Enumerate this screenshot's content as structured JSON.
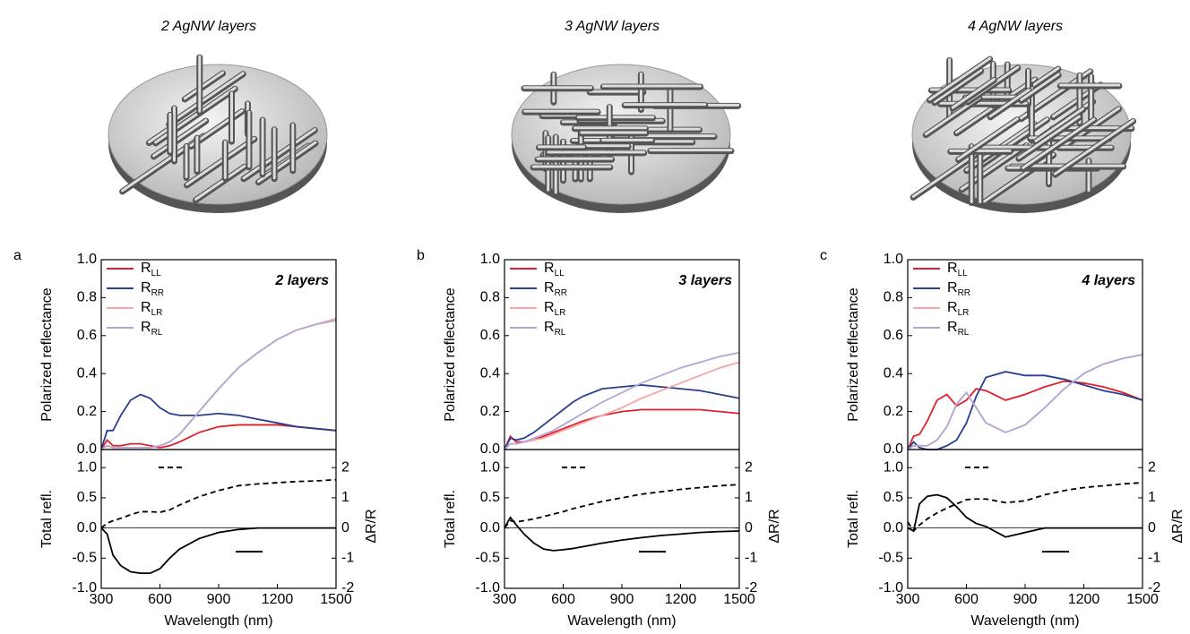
{
  "chart_data": [
    {
      "type": "line",
      "title": "2 AgNW layers",
      "panel_label": "a",
      "annotation": "2 layers",
      "ylabel": "Polarized reflectance",
      "x": [
        300,
        330,
        360,
        400,
        450,
        500,
        550,
        600,
        650,
        700,
        800,
        900,
        1000,
        1100,
        1200,
        1300,
        1400,
        1500
      ],
      "xlim": [
        300,
        1500
      ],
      "ylim": [
        0,
        1
      ],
      "yticks": [
        {
          "value": 0,
          "label": "0.0"
        },
        0.2,
        0.4,
        0.6,
        0.8,
        {
          "value": 1,
          "label": "1.0"
        }
      ],
      "series": [
        {
          "name": "RLL",
          "color": "#e0202a",
          "values": [
            0,
            0.05,
            0.02,
            0.02,
            0.03,
            0.03,
            0.02,
            0.01,
            0.02,
            0.04,
            0.09,
            0.12,
            0.13,
            0.13,
            0.13,
            0.12,
            0.11,
            0.1
          ]
        },
        {
          "name": "RRR",
          "color": "#2b3f8f",
          "values": [
            0,
            0.1,
            0.1,
            0.18,
            0.26,
            0.29,
            0.27,
            0.22,
            0.19,
            0.18,
            0.18,
            0.19,
            0.18,
            0.16,
            0.14,
            0.12,
            0.11,
            0.1
          ]
        },
        {
          "name": "RLR",
          "color": "#f4a6a6",
          "values": [
            0,
            0.02,
            0.01,
            0.01,
            0.01,
            0.01,
            0.01,
            0.02,
            0.04,
            0.08,
            0.2,
            0.32,
            0.43,
            0.51,
            0.58,
            0.63,
            0.66,
            0.69
          ]
        },
        {
          "name": "RRL",
          "color": "#b3a6d3",
          "values": [
            0,
            0.02,
            0.01,
            0.01,
            0.01,
            0.01,
            0.01,
            0.02,
            0.04,
            0.08,
            0.2,
            0.32,
            0.43,
            0.51,
            0.58,
            0.63,
            0.66,
            0.68
          ]
        }
      ]
    },
    {
      "type": "line",
      "xlabel": "Wavelength (nm)",
      "ylabel": "Total refl.",
      "y2label": "ΔR/R",
      "x": [
        300,
        330,
        360,
        400,
        450,
        500,
        550,
        600,
        650,
        700,
        800,
        900,
        1000,
        1100,
        1200,
        1300,
        1400,
        1500
      ],
      "xlim": [
        300,
        1500
      ],
      "xticks": [
        300,
        600,
        900,
        1200,
        1500
      ],
      "ylim": [
        -1,
        1.3
      ],
      "yticks": [
        {
          "value": -1,
          "label": "-1.0"
        },
        -0.5,
        {
          "value": 0,
          "label": "0.0"
        },
        0.5,
        {
          "value": 1,
          "label": "1.0"
        }
      ],
      "y2lim": [
        -2,
        2.6
      ],
      "y2ticks": [
        -2,
        -1,
        0,
        1,
        2
      ],
      "series": [
        {
          "name": "R",
          "color": "#000000",
          "dash": true,
          "values": [
            0,
            0.08,
            0.12,
            0.16,
            0.22,
            0.27,
            0.27,
            0.26,
            0.3,
            0.38,
            0.52,
            0.62,
            0.7,
            0.73,
            0.75,
            0.77,
            0.78,
            0.8
          ]
        },
        {
          "name": "ΔR/R",
          "color": "#000000",
          "axis": "y2",
          "values": [
            0,
            -0.2,
            -0.9,
            -1.25,
            -1.45,
            -1.5,
            -1.5,
            -1.35,
            -1.0,
            -0.7,
            -0.35,
            -0.15,
            -0.05,
            0,
            0,
            0,
            0,
            0
          ]
        }
      ]
    },
    {
      "type": "line",
      "title": "3 AgNW layers",
      "panel_label": "b",
      "annotation": "3 layers",
      "ylabel": "Polarized reflectance",
      "x": [
        300,
        330,
        360,
        400,
        450,
        500,
        550,
        600,
        650,
        700,
        800,
        900,
        1000,
        1100,
        1200,
        1300,
        1400,
        1500
      ],
      "xlim": [
        300,
        1500
      ],
      "ylim": [
        0,
        1
      ],
      "yticks": [
        {
          "value": 0,
          "label": "0.0"
        },
        0.2,
        0.4,
        0.6,
        0.8,
        {
          "value": 1,
          "label": "1.0"
        }
      ],
      "series": [
        {
          "name": "RLL",
          "color": "#e0202a",
          "values": [
            0,
            0.07,
            0.04,
            0.04,
            0.05,
            0.07,
            0.09,
            0.11,
            0.13,
            0.15,
            0.18,
            0.2,
            0.21,
            0.21,
            0.21,
            0.21,
            0.2,
            0.19
          ]
        },
        {
          "name": "RRR",
          "color": "#2b3f8f",
          "values": [
            0,
            0.06,
            0.05,
            0.06,
            0.09,
            0.13,
            0.17,
            0.21,
            0.25,
            0.28,
            0.32,
            0.33,
            0.34,
            0.33,
            0.32,
            0.31,
            0.29,
            0.27
          ]
        },
        {
          "name": "RLR",
          "color": "#f4a6a6",
          "values": [
            0,
            0.03,
            0.03,
            0.04,
            0.05,
            0.06,
            0.08,
            0.1,
            0.12,
            0.14,
            0.18,
            0.22,
            0.27,
            0.31,
            0.35,
            0.39,
            0.43,
            0.46
          ]
        },
        {
          "name": "RRL",
          "color": "#b3a6d3",
          "values": [
            0,
            0.03,
            0.03,
            0.04,
            0.06,
            0.08,
            0.1,
            0.13,
            0.16,
            0.19,
            0.25,
            0.3,
            0.35,
            0.39,
            0.43,
            0.46,
            0.49,
            0.51
          ]
        }
      ]
    },
    {
      "type": "line",
      "xlabel": "Wavelength (nm)",
      "ylabel": "Total refl.",
      "y2label": "ΔR/R",
      "x": [
        300,
        330,
        360,
        400,
        450,
        500,
        550,
        600,
        650,
        700,
        800,
        900,
        1000,
        1100,
        1200,
        1300,
        1400,
        1500
      ],
      "xlim": [
        300,
        1500
      ],
      "xticks": [
        300,
        600,
        900,
        1200,
        1500
      ],
      "ylim": [
        -1,
        1.3
      ],
      "yticks": [
        {
          "value": -1,
          "label": "-1.0"
        },
        -0.5,
        {
          "value": 0,
          "label": "0.0"
        },
        0.5,
        {
          "value": 1,
          "label": "1.0"
        }
      ],
      "y2lim": [
        -2,
        2.6
      ],
      "y2ticks": [
        -2,
        -1,
        0,
        1,
        2
      ],
      "series": [
        {
          "name": "R",
          "color": "#000000",
          "dash": true,
          "values": [
            0,
            0.12,
            0.1,
            0.12,
            0.15,
            0.19,
            0.23,
            0.27,
            0.32,
            0.36,
            0.44,
            0.5,
            0.56,
            0.6,
            0.64,
            0.67,
            0.7,
            0.72
          ]
        },
        {
          "name": "ΔR/R",
          "color": "#000000",
          "axis": "y2",
          "values": [
            0,
            0.35,
            0.1,
            -0.2,
            -0.5,
            -0.7,
            -0.75,
            -0.72,
            -0.68,
            -0.62,
            -0.5,
            -0.4,
            -0.32,
            -0.25,
            -0.2,
            -0.15,
            -0.12,
            -0.1
          ]
        }
      ]
    },
    {
      "type": "line",
      "title": "4 AgNW layers",
      "panel_label": "c",
      "annotation": "4 layers",
      "ylabel": "Polarized reflectance",
      "x": [
        300,
        330,
        360,
        400,
        450,
        500,
        550,
        600,
        650,
        700,
        800,
        900,
        1000,
        1100,
        1200,
        1300,
        1400,
        1500
      ],
      "xlim": [
        300,
        1500
      ],
      "ylim": [
        0,
        1
      ],
      "yticks": [
        {
          "value": 0,
          "label": "0.0"
        },
        0.2,
        0.4,
        0.6,
        0.8,
        {
          "value": 1,
          "label": "1.0"
        }
      ],
      "series": [
        {
          "name": "RLL",
          "color": "#e0202a",
          "values": [
            0,
            0.07,
            0.08,
            0.15,
            0.26,
            0.29,
            0.23,
            0.26,
            0.32,
            0.31,
            0.26,
            0.29,
            0.33,
            0.36,
            0.35,
            0.33,
            0.3,
            0.26
          ]
        },
        {
          "name": "RRR",
          "color": "#2b3f8f",
          "values": [
            0,
            0.04,
            0.01,
            0,
            0,
            0.02,
            0.05,
            0.14,
            0.28,
            0.38,
            0.41,
            0.39,
            0.39,
            0.37,
            0.34,
            0.31,
            0.29,
            0.26
          ]
        },
        {
          "name": "RLR",
          "color": "#f4a6a6",
          "values": [
            0,
            0.02,
            0.02,
            0.02,
            0.05,
            0.12,
            0.24,
            0.3,
            0.22,
            0.14,
            0.09,
            0.13,
            0.22,
            0.32,
            0.4,
            0.45,
            0.48,
            0.5
          ]
        },
        {
          "name": "RRL",
          "color": "#b3a6d3",
          "values": [
            0,
            0.02,
            0.02,
            0.02,
            0.05,
            0.12,
            0.24,
            0.3,
            0.22,
            0.14,
            0.09,
            0.13,
            0.22,
            0.32,
            0.4,
            0.45,
            0.48,
            0.5
          ]
        }
      ]
    },
    {
      "type": "line",
      "xlabel": "Wavelength (nm)",
      "ylabel": "Total refl.",
      "y2label": "ΔR/R",
      "x": [
        300,
        330,
        360,
        400,
        450,
        500,
        550,
        600,
        650,
        700,
        800,
        900,
        1000,
        1100,
        1200,
        1300,
        1400,
        1500
      ],
      "xlim": [
        300,
        1500
      ],
      "xticks": [
        300,
        600,
        900,
        1200,
        1500
      ],
      "ylim": [
        -1,
        1.3
      ],
      "yticks": [
        {
          "value": -1,
          "label": "-1.0"
        },
        -0.5,
        {
          "value": 0,
          "label": "0.0"
        },
        0.5,
        {
          "value": 1,
          "label": "1.0"
        }
      ],
      "y2lim": [
        -2,
        2.6
      ],
      "y2ticks": [
        -2,
        -1,
        0,
        1,
        2
      ],
      "series": [
        {
          "name": "R",
          "color": "#000000",
          "dash": true,
          "values": [
            0.1,
            -0.05,
            0.05,
            0.15,
            0.25,
            0.33,
            0.4,
            0.47,
            0.48,
            0.48,
            0.42,
            0.45,
            0.55,
            0.62,
            0.67,
            0.7,
            0.73,
            0.75
          ]
        },
        {
          "name": "ΔR/R",
          "color": "#000000",
          "axis": "y2",
          "values": [
            0,
            -0.1,
            0.8,
            1.05,
            1.1,
            1.0,
            0.7,
            0.35,
            0.15,
            0.05,
            -0.3,
            -0.15,
            0,
            0,
            0,
            0,
            0,
            0
          ]
        }
      ]
    }
  ]
}
